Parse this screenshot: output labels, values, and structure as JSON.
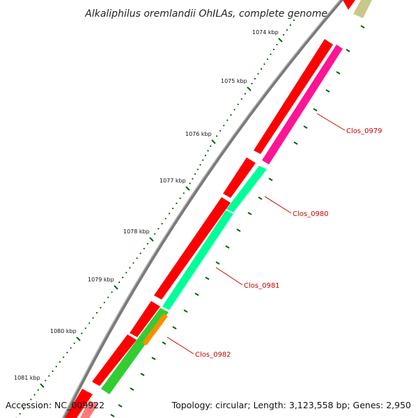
{
  "title": "Alkaliphilus oremlandii OhILAs, complete genome",
  "accession": "Accession: NC_009922",
  "topology": "Topology: circular; Length: 3,123,558 bp; Genes: 2,950",
  "ticks": [
    {
      "label": "1074 kbp"
    },
    {
      "label": "1075 kbp"
    },
    {
      "label": "1076 kbp"
    },
    {
      "label": "1077 kbp"
    },
    {
      "label": "1078 kbp"
    },
    {
      "label": "1079 kbp"
    },
    {
      "label": "1080 kbp"
    },
    {
      "label": "1081 kbp"
    }
  ],
  "genes": [
    {
      "name": "Clos_0979",
      "color": "#ff1493",
      "cds_color": "#ff0000"
    },
    {
      "name": "Clos_0980",
      "color": "#00ff99",
      "cds_color": "#ff0000"
    },
    {
      "name": "Clos_0981",
      "color": "#00ff99",
      "cds_color": "#ff0000"
    },
    {
      "name": "Clos_0982",
      "color": "#33cc33",
      "cds_color": "#ff0000"
    }
  ],
  "colors": {
    "backbone": "#7a7a7a",
    "tick_dot": "#006400",
    "tick_major": "#006400",
    "label_red": "#cc0000",
    "olive": "#c8c88a",
    "orange": "#ff8c00"
  }
}
